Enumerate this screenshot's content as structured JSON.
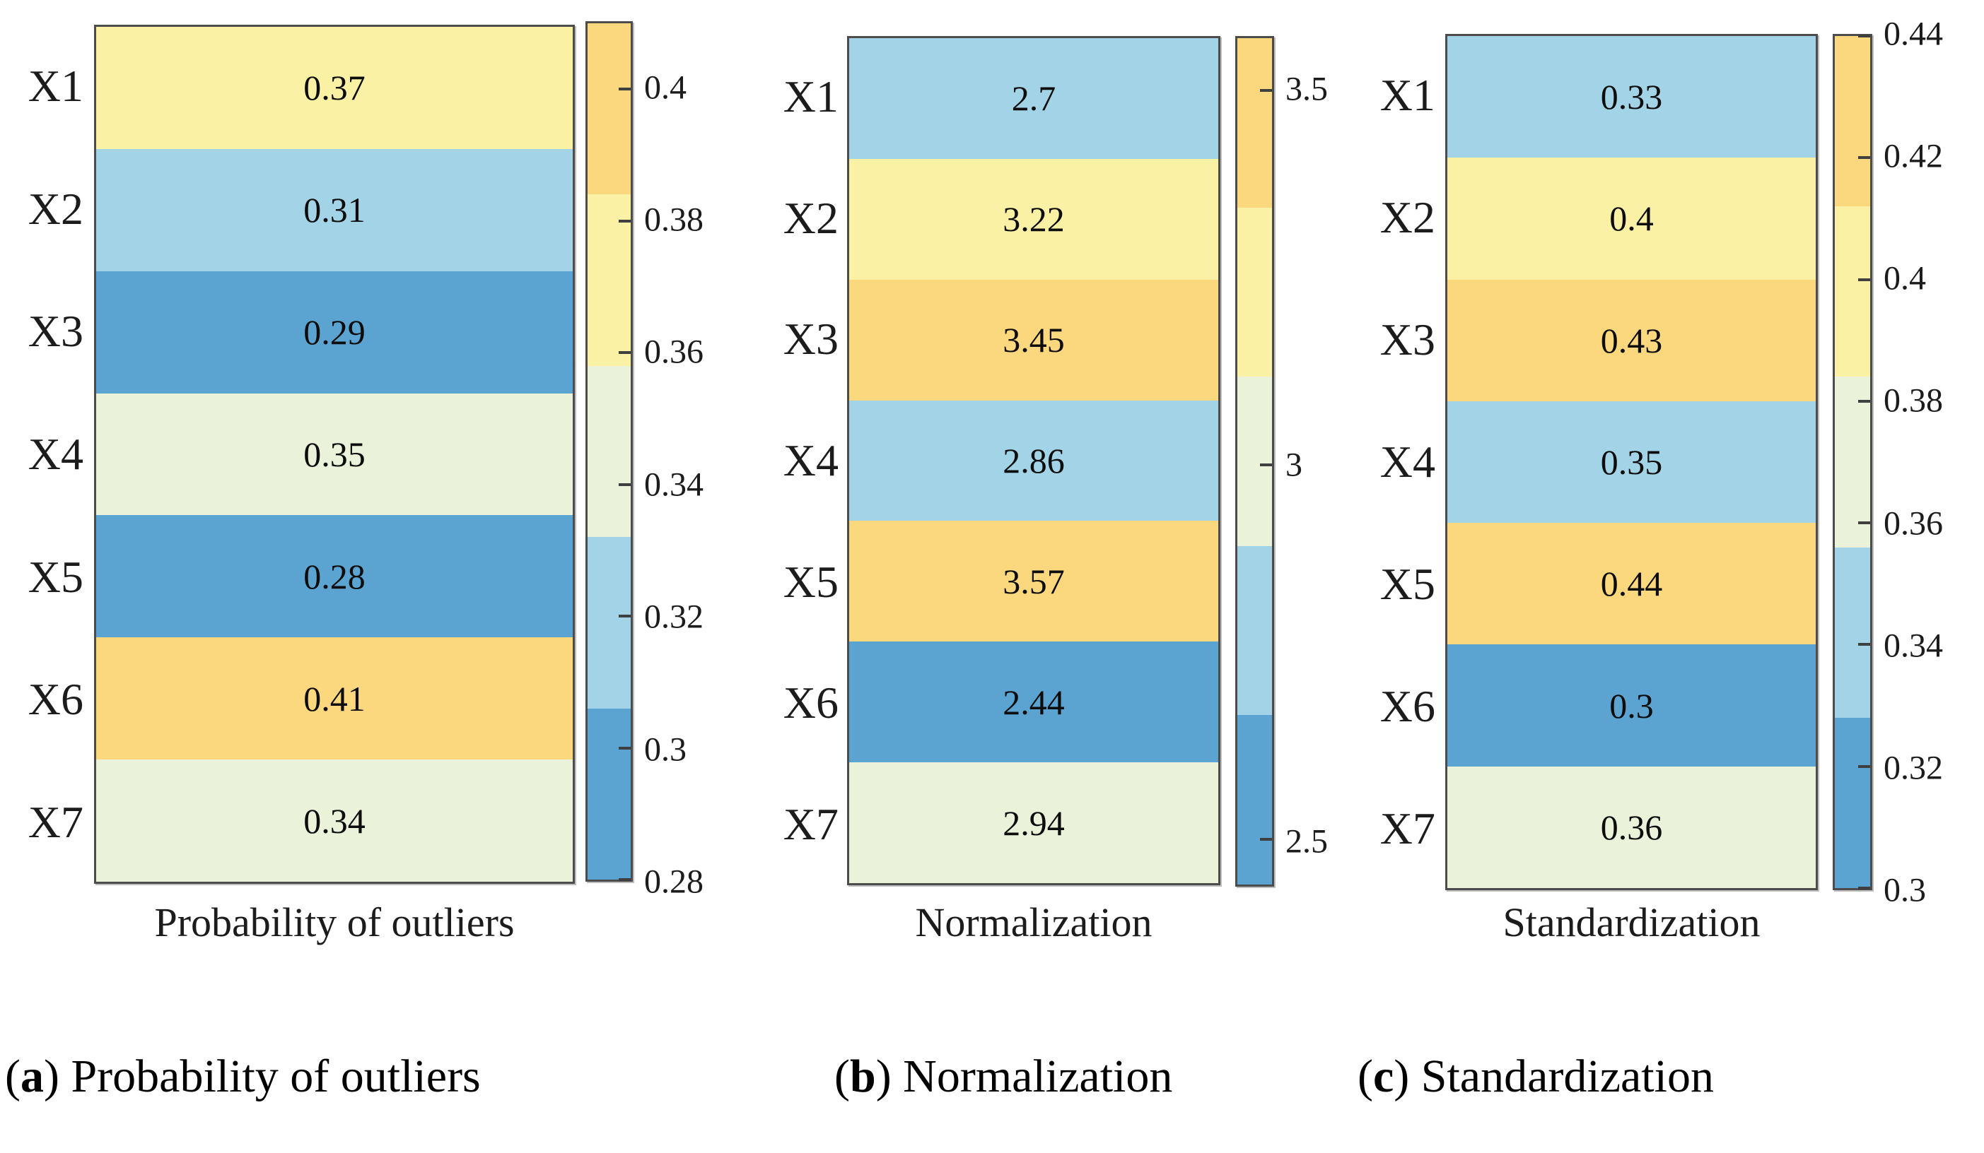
{
  "palette": {
    "colors_low_to_high": [
      "#5BA3D0",
      "#A3D3E6",
      "#EAF3DA",
      "#FBF1A4",
      "#FBD87E"
    ],
    "border": "#4C4C4C",
    "text": "#111111",
    "background": "#FFFFFF"
  },
  "chart_data": [
    {
      "type": "heatmap",
      "panel": "a",
      "caption_letter": "a",
      "caption_text": "Probability of outliers",
      "axis_title": "Probability of outliers",
      "categories": [
        "X1",
        "X2",
        "X3",
        "X4",
        "X5",
        "X6",
        "X7"
      ],
      "values": [
        0.37,
        0.31,
        0.29,
        0.35,
        0.28,
        0.41,
        0.34
      ],
      "value_labels": [
        "0.37",
        "0.31",
        "0.29",
        "0.35",
        "0.28",
        "0.41",
        "0.34"
      ],
      "legend_position": "right",
      "grid": false,
      "colorbar": {
        "min": 0.28,
        "max": 0.41,
        "n_segments": 5,
        "ticks": [
          0.4,
          0.38,
          0.36,
          0.34,
          0.32,
          0.3,
          0.28
        ],
        "tick_labels": [
          "0.4",
          "0.38",
          "0.36",
          "0.34",
          "0.32",
          "0.3",
          "0.28"
        ]
      }
    },
    {
      "type": "heatmap",
      "panel": "b",
      "caption_letter": "b",
      "caption_text": "Normalization",
      "axis_title": "Normalization",
      "categories": [
        "X1",
        "X2",
        "X3",
        "X4",
        "X5",
        "X6",
        "X7"
      ],
      "values": [
        2.7,
        3.22,
        3.45,
        2.86,
        3.57,
        2.44,
        2.94
      ],
      "value_labels": [
        "2.7",
        "3.22",
        "3.45",
        "2.86",
        "3.57",
        "2.44",
        "2.94"
      ],
      "legend_position": "right",
      "grid": false,
      "colorbar": {
        "min": 2.44,
        "max": 3.57,
        "n_segments": 5,
        "ticks": [
          3.5,
          3,
          2.5
        ],
        "tick_labels": [
          "3.5",
          "3",
          "2.5"
        ]
      }
    },
    {
      "type": "heatmap",
      "panel": "c",
      "caption_letter": "c",
      "caption_text": "Standardization",
      "axis_title": "Standardization",
      "categories": [
        "X1",
        "X2",
        "X3",
        "X4",
        "X5",
        "X6",
        "X7"
      ],
      "values": [
        0.33,
        0.4,
        0.43,
        0.35,
        0.44,
        0.3,
        0.36
      ],
      "value_labels": [
        "0.33",
        "0.4",
        "0.43",
        "0.35",
        "0.44",
        "0.3",
        "0.36"
      ],
      "legend_position": "right",
      "grid": false,
      "colorbar": {
        "min": 0.3,
        "max": 0.44,
        "n_segments": 5,
        "ticks": [
          0.44,
          0.42,
          0.4,
          0.38,
          0.36,
          0.34,
          0.32,
          0.3
        ],
        "tick_labels": [
          "0.44",
          "0.42",
          "0.4",
          "0.38",
          "0.36",
          "0.34",
          "0.32",
          "0.3"
        ]
      }
    }
  ]
}
